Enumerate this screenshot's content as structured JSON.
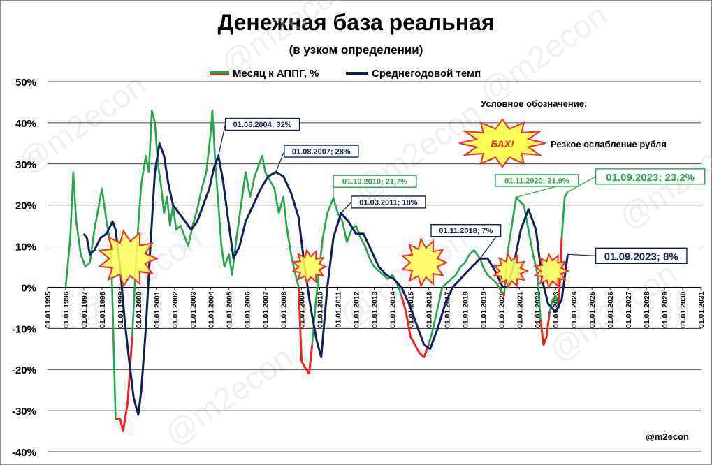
{
  "title": "Денежная база реальная",
  "subtitle": "(в узком определении)",
  "watermark": "@m2econ",
  "source": "@m2econ",
  "legend_note": {
    "heading": "Условное обозначение:",
    "burst_label": "БАХ!",
    "burst_text": "Резкое ослабление рубля"
  },
  "colors": {
    "monthly": "#1fa84a",
    "monthly_ruble_crash": "#ff1a1a",
    "average": "#0d1f5c",
    "burst_fill": "#ffff55",
    "burst_stroke": "#ff2a2a"
  },
  "chart_data": {
    "type": "line",
    "title": "Денежная база реальная",
    "subtitle": "(в узком определении)",
    "xlabel": "",
    "ylabel": "",
    "ylim": [
      -40,
      50
    ],
    "xlim": [
      "1995-01-01",
      "2031-01-01"
    ],
    "y_ticks": [
      "-40%",
      "-30%",
      "-20%",
      "-10%",
      "0%",
      "10%",
      "20%",
      "30%",
      "40%",
      "50%"
    ],
    "x_ticks": [
      "01.01.1995",
      "01.01.1996",
      "01.01.1997",
      "01.01.1998",
      "01.01.1999",
      "01.01.2000",
      "01.01.2001",
      "01.01.2002",
      "01.01.2003",
      "01.01.2004",
      "01.01.2005",
      "01.01.2006",
      "01.01.2007",
      "01.01.2008",
      "01.01.2009",
      "01.01.2010",
      "01.01.2011",
      "01.01.2012",
      "01.01.2013",
      "01.01.2014",
      "01.01.2015",
      "01.01.2016",
      "01.01.2017",
      "01.01.2018",
      "01.01.2019",
      "01.01.2020",
      "01.01.2021",
      "01.01.2022",
      "01.01.2023",
      "01.01.2024",
      "01.01.2025",
      "01.01.2026",
      "01.01.2027",
      "01.01.2028",
      "01.01.2029",
      "01.01.2030",
      "01.01.2031"
    ],
    "grid": "horizontal",
    "legend": "top-center",
    "series": [
      {
        "name": "Месяц к АППГ, %",
        "points": [
          [
            "1996-01-01",
            0
          ],
          [
            "1996-04-01",
            12
          ],
          [
            "1996-06-01",
            28
          ],
          [
            "1996-08-01",
            16
          ],
          [
            "1996-11-01",
            8
          ],
          [
            "1997-02-01",
            5
          ],
          [
            "1997-05-01",
            6
          ],
          [
            "1997-08-01",
            14
          ],
          [
            "1997-11-01",
            20
          ],
          [
            "1998-01-01",
            24
          ],
          [
            "1998-04-01",
            16
          ],
          [
            "1998-07-01",
            10
          ],
          [
            "1998-10-01",
            -32
          ],
          [
            "1999-01-01",
            -32
          ],
          [
            "1999-03-01",
            -35
          ],
          [
            "1999-06-01",
            -28
          ],
          [
            "1999-09-01",
            -12
          ],
          [
            "1999-12-01",
            10
          ],
          [
            "2000-03-01",
            25
          ],
          [
            "2000-06-01",
            32
          ],
          [
            "2000-08-01",
            28
          ],
          [
            "2000-10-01",
            43
          ],
          [
            "2000-12-01",
            40
          ],
          [
            "2001-02-01",
            30
          ],
          [
            "2001-04-01",
            25
          ],
          [
            "2001-06-01",
            18
          ],
          [
            "2001-08-01",
            22
          ],
          [
            "2001-10-01",
            15
          ],
          [
            "2001-12-01",
            20
          ],
          [
            "2002-02-01",
            14
          ],
          [
            "2002-05-01",
            15
          ],
          [
            "2002-08-01",
            12
          ],
          [
            "2002-10-01",
            10
          ],
          [
            "2003-01-01",
            15
          ],
          [
            "2003-04-01",
            19
          ],
          [
            "2003-07-01",
            24
          ],
          [
            "2003-10-01",
            28
          ],
          [
            "2004-01-01",
            38
          ],
          [
            "2004-02-01",
            43
          ],
          [
            "2004-04-01",
            30
          ],
          [
            "2004-06-01",
            20
          ],
          [
            "2004-08-01",
            10
          ],
          [
            "2004-10-01",
            5
          ],
          [
            "2005-01-01",
            8
          ],
          [
            "2005-03-01",
            3
          ],
          [
            "2005-06-01",
            12
          ],
          [
            "2005-09-01",
            20
          ],
          [
            "2005-12-01",
            28
          ],
          [
            "2006-03-01",
            22
          ],
          [
            "2006-06-01",
            27
          ],
          [
            "2006-09-01",
            30
          ],
          [
            "2006-11-01",
            32
          ],
          [
            "2007-01-01",
            28
          ],
          [
            "2007-04-01",
            26
          ],
          [
            "2007-07-01",
            24
          ],
          [
            "2007-10-01",
            18
          ],
          [
            "2008-01-01",
            22
          ],
          [
            "2008-03-01",
            15
          ],
          [
            "2008-06-01",
            8
          ],
          [
            "2008-09-01",
            3
          ],
          [
            "2008-11-01",
            0
          ],
          [
            "2009-01-01",
            -18
          ],
          [
            "2009-04-01",
            -20
          ],
          [
            "2009-06-01",
            -21
          ],
          [
            "2009-08-01",
            -14
          ],
          [
            "2009-10-01",
            -5
          ],
          [
            "2009-12-01",
            2
          ],
          [
            "2010-03-01",
            12
          ],
          [
            "2010-06-01",
            18
          ],
          [
            "2010-10-01",
            21.7
          ],
          [
            "2011-01-01",
            18
          ],
          [
            "2011-04-01",
            16
          ],
          [
            "2011-07-01",
            11
          ],
          [
            "2011-10-01",
            14
          ],
          [
            "2012-01-01",
            15
          ],
          [
            "2012-04-01",
            12
          ],
          [
            "2012-07-01",
            10
          ],
          [
            "2012-10-01",
            7
          ],
          [
            "2013-01-01",
            5
          ],
          [
            "2013-04-01",
            4
          ],
          [
            "2013-07-01",
            3
          ],
          [
            "2013-10-01",
            2
          ],
          [
            "2014-01-01",
            3
          ],
          [
            "2014-04-01",
            1
          ],
          [
            "2014-07-01",
            -2
          ],
          [
            "2014-10-01",
            -6
          ],
          [
            "2015-01-01",
            -12
          ],
          [
            "2015-04-01",
            -14
          ],
          [
            "2015-07-01",
            -16
          ],
          [
            "2015-10-01",
            -17
          ],
          [
            "2016-01-01",
            -14
          ],
          [
            "2016-04-01",
            -10
          ],
          [
            "2016-07-01",
            -5
          ],
          [
            "2016-10-01",
            0
          ],
          [
            "2017-01-01",
            1
          ],
          [
            "2017-04-01",
            2
          ],
          [
            "2017-07-01",
            3
          ],
          [
            "2017-10-01",
            5
          ],
          [
            "2018-01-01",
            6
          ],
          [
            "2018-04-01",
            8
          ],
          [
            "2018-07-01",
            9
          ],
          [
            "2018-11-01",
            7
          ],
          [
            "2019-01-01",
            5
          ],
          [
            "2019-04-01",
            3
          ],
          [
            "2019-07-01",
            2
          ],
          [
            "2019-10-01",
            1
          ],
          [
            "2020-01-01",
            -1
          ],
          [
            "2020-03-01",
            -2
          ],
          [
            "2020-05-01",
            8
          ],
          [
            "2020-08-01",
            15
          ],
          [
            "2020-11-01",
            21.9
          ],
          [
            "2021-01-01",
            21
          ],
          [
            "2021-04-01",
            20
          ],
          [
            "2021-07-01",
            14
          ],
          [
            "2021-10-01",
            8
          ],
          [
            "2021-12-01",
            5
          ],
          [
            "2022-01-01",
            3
          ],
          [
            "2022-03-01",
            -8
          ],
          [
            "2022-05-01",
            -14
          ],
          [
            "2022-07-01",
            -12
          ],
          [
            "2022-09-01",
            -6
          ],
          [
            "2022-11-01",
            -3
          ],
          [
            "2023-01-01",
            -2
          ],
          [
            "2023-03-01",
            -5
          ],
          [
            "2023-05-01",
            12
          ],
          [
            "2023-07-01",
            22
          ],
          [
            "2023-09-01",
            23.2
          ]
        ],
        "ruble_crash_segments": [
          [
            "1998-08-01",
            "1999-10-01"
          ],
          [
            "2008-11-01",
            "2009-09-01"
          ],
          [
            "2014-07-01",
            "2016-02-01"
          ],
          [
            "2020-01-01",
            "2020-04-01"
          ],
          [
            "2022-02-01",
            "2022-10-01"
          ],
          [
            "2023-02-01",
            "2023-05-01"
          ]
        ]
      },
      {
        "name": "Среднегодовой темп",
        "points": [
          [
            "1997-01-01",
            13
          ],
          [
            "1997-03-01",
            12
          ],
          [
            "1997-05-01",
            8
          ],
          [
            "1997-08-01",
            9
          ],
          [
            "1997-12-01",
            12
          ],
          [
            "1998-04-01",
            13
          ],
          [
            "1998-08-01",
            16
          ],
          [
            "1998-10-01",
            14
          ],
          [
            "1999-01-01",
            5
          ],
          [
            "1999-04-01",
            -8
          ],
          [
            "1999-07-01",
            -18
          ],
          [
            "1999-10-01",
            -27
          ],
          [
            "2000-01-01",
            -31
          ],
          [
            "2000-03-01",
            -25
          ],
          [
            "2000-06-01",
            -10
          ],
          [
            "2000-09-01",
            10
          ],
          [
            "2000-12-01",
            28
          ],
          [
            "2001-03-01",
            35
          ],
          [
            "2001-06-01",
            32
          ],
          [
            "2001-09-01",
            25
          ],
          [
            "2001-12-01",
            20
          ],
          [
            "2002-04-01",
            18
          ],
          [
            "2002-08-01",
            16
          ],
          [
            "2002-12-01",
            14
          ],
          [
            "2003-04-01",
            16
          ],
          [
            "2003-08-01",
            20
          ],
          [
            "2003-12-01",
            24
          ],
          [
            "2004-03-01",
            29
          ],
          [
            "2004-06-01",
            32
          ],
          [
            "2004-09-01",
            26
          ],
          [
            "2005-01-01",
            15
          ],
          [
            "2005-04-01",
            7
          ],
          [
            "2005-08-01",
            10
          ],
          [
            "2005-12-01",
            16
          ],
          [
            "2006-05-01",
            20
          ],
          [
            "2006-10-01",
            24
          ],
          [
            "2007-03-01",
            27
          ],
          [
            "2007-08-01",
            28
          ],
          [
            "2008-01-01",
            27
          ],
          [
            "2008-06-01",
            23
          ],
          [
            "2008-11-01",
            17
          ],
          [
            "2009-03-01",
            5
          ],
          [
            "2009-07-01",
            -5
          ],
          [
            "2009-11-01",
            -13
          ],
          [
            "2010-02-01",
            -17
          ],
          [
            "2010-06-01",
            0
          ],
          [
            "2010-10-01",
            12
          ],
          [
            "2011-03-01",
            18
          ],
          [
            "2011-08-01",
            16
          ],
          [
            "2012-01-01",
            13
          ],
          [
            "2012-06-01",
            13
          ],
          [
            "2012-11-01",
            9
          ],
          [
            "2013-04-01",
            5
          ],
          [
            "2013-09-01",
            3
          ],
          [
            "2014-02-01",
            2
          ],
          [
            "2014-07-01",
            0
          ],
          [
            "2014-12-01",
            -4
          ],
          [
            "2015-05-01",
            -9
          ],
          [
            "2015-10-01",
            -14
          ],
          [
            "2016-02-01",
            -15
          ],
          [
            "2016-07-01",
            -10
          ],
          [
            "2016-12-01",
            -4
          ],
          [
            "2017-05-01",
            0
          ],
          [
            "2017-10-01",
            2
          ],
          [
            "2018-03-01",
            4
          ],
          [
            "2018-11-01",
            7
          ],
          [
            "2019-04-01",
            7
          ],
          [
            "2019-09-01",
            4
          ],
          [
            "2020-02-01",
            0
          ],
          [
            "2020-05-01",
            0
          ],
          [
            "2020-09-01",
            5
          ],
          [
            "2021-02-01",
            14
          ],
          [
            "2021-07-01",
            19
          ],
          [
            "2021-12-01",
            14
          ],
          [
            "2022-04-01",
            2
          ],
          [
            "2022-08-01",
            -4
          ],
          [
            "2023-01-01",
            -6
          ],
          [
            "2023-05-01",
            -3
          ],
          [
            "2023-09-01",
            8
          ]
        ]
      }
    ],
    "annotations": [
      {
        "label": "01.06.2004; 32%",
        "series": "Среднегодовой темп",
        "date": "2004-06-01",
        "value": 32,
        "dx": 10,
        "dy": -45
      },
      {
        "label": "01.08.2007; 28%",
        "series": "Среднегодовой темп",
        "date": "2007-08-01",
        "value": 28,
        "dx": 12,
        "dy": -30
      },
      {
        "label": "01.10.2010; 21,7%",
        "series": "Месяц к АППГ, %",
        "date": "2010-10-01",
        "value": 21.7,
        "dx": 0,
        "dy": -24
      },
      {
        "label": "01.03.2011; 18%",
        "series": "Среднегодовой темп",
        "date": "2011-03-01",
        "value": 18,
        "dx": 15,
        "dy": -16
      },
      {
        "label": "01.11.2018; 7%",
        "series": "Среднегодовой темп",
        "date": "2018-11-01",
        "value": 7,
        "dx": -70,
        "dy": -40
      },
      {
        "label": "01.11.2020; 21,9%",
        "series": "Месяц к АППГ, %",
        "date": "2020-11-01",
        "value": 21.9,
        "dx": -30,
        "dy": -24
      },
      {
        "label": "01.09.2023; 23,2%",
        "series": "Месяц к АППГ, %",
        "date": "2023-09-01",
        "value": 23.2,
        "dx": 40,
        "dy": -22,
        "big": true
      },
      {
        "label": "01.09.2023; 8%",
        "series": "Среднегодовой темп",
        "date": "2023-09-01",
        "value": 8,
        "dx": 40,
        "dy": 2,
        "big": true
      }
    ],
    "ruble_crash_bursts": [
      {
        "date": "1999-06-01",
        "value": 7,
        "size": "large"
      },
      {
        "date": "2009-06-01",
        "value": 5,
        "size": "small"
      },
      {
        "date": "2015-10-01",
        "value": 6,
        "size": "medium"
      },
      {
        "date": "2020-07-01",
        "value": 4,
        "size": "small"
      },
      {
        "date": "2022-10-01",
        "value": 4,
        "size": "small"
      }
    ]
  }
}
